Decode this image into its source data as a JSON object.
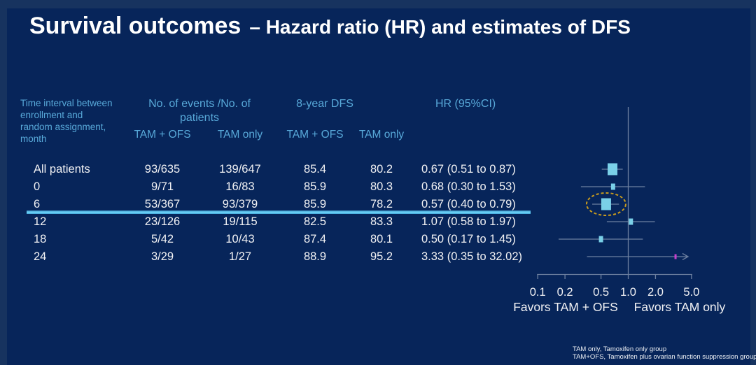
{
  "title": {
    "main": "Survival outcomes",
    "sub": "– Hazard ratio (HR) and estimates of DFS"
  },
  "table": {
    "row_header": "Time interval between\nenrollment and\nrandom assignment,\nmonth",
    "group_headers": {
      "events": "No. of events /No. of patients",
      "dfs": "8-year DFS",
      "hr": "HR (95%CI)"
    },
    "sub_headers": [
      "TAM + OFS",
      "TAM only",
      "TAM + OFS",
      "TAM only"
    ],
    "rows": [
      [
        "All patients",
        "93/635",
        "139/647",
        "85.4",
        "80.2",
        "0.67 (0.51 to 0.87)"
      ],
      [
        "0",
        "9/71",
        "16/83",
        "85.9",
        "80.3",
        "0.68 (0.30 to 1.53)"
      ],
      [
        "6",
        "53/367",
        "93/379",
        "85.9",
        "78.2",
        "0.57 (0.40 to 0.79)"
      ],
      [
        "12",
        "23/126",
        "19/115",
        "82.5",
        "83.3",
        "1.07 (0.58 to 1.97)"
      ],
      [
        "18",
        "5/42",
        "10/43",
        "87.4",
        "80.1",
        "0.50 (0.17 to 1.45)"
      ],
      [
        "24",
        "3/29",
        "1/27",
        "88.9",
        "95.2",
        "3.33 (0.35 to 32.02)"
      ]
    ],
    "highlighted_row_label": "6"
  },
  "chart_data": {
    "type": "scatter",
    "subtype": "forest-plot",
    "x_scale": "log10",
    "x_ticks": [
      0.1,
      0.2,
      0.5,
      1.0,
      2.0,
      5.0
    ],
    "x_range": [
      0.1,
      5.0
    ],
    "reference_line": 1.0,
    "favors_left": "Favors TAM + OFS",
    "favors_right": "Favors TAM only",
    "rows": [
      {
        "label": "All patients",
        "hr": 0.67,
        "ci_low": 0.51,
        "ci_high": 0.87,
        "marker": "large"
      },
      {
        "label": "0",
        "hr": 0.68,
        "ci_low": 0.3,
        "ci_high": 1.53,
        "marker": "small"
      },
      {
        "label": "6",
        "hr": 0.57,
        "ci_low": 0.4,
        "ci_high": 0.79,
        "marker": "large",
        "highlighted": true
      },
      {
        "label": "12",
        "hr": 1.07,
        "ci_low": 0.58,
        "ci_high": 1.97,
        "marker": "small"
      },
      {
        "label": "18",
        "hr": 0.5,
        "ci_low": 0.17,
        "ci_high": 1.45,
        "marker": "small"
      },
      {
        "label": "24",
        "hr": 3.33,
        "ci_low": 0.35,
        "ci_high": 32.02,
        "marker": "dot",
        "arrow_right": true
      }
    ]
  },
  "footnotes": [
    "TAM only, Tamoxifen only group",
    "TAM+OFS, Tamoxifen plus ovarian function suppression group"
  ],
  "colors": {
    "background": "#07255a",
    "header_text": "#58a9d9",
    "body_text": "#f2f2f4",
    "highlight_line": "#67cdf4",
    "marker": "#7ad0e8",
    "ci_line": "#6d80a0",
    "circle": "#c89b1e",
    "outlier_marker": "#c840cc"
  }
}
